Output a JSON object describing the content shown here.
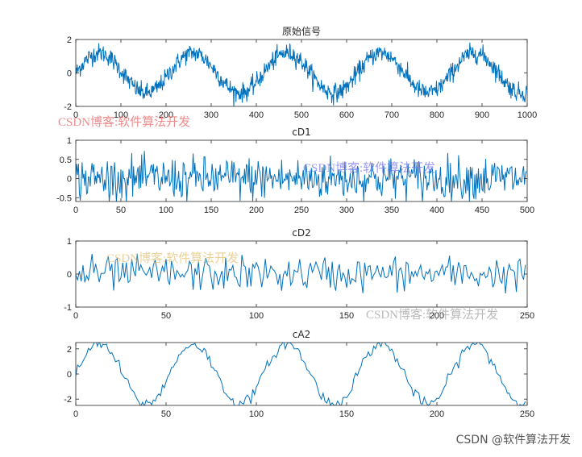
{
  "watermarks": {
    "csdn_1": "CSDN博客:软件算法开发",
    "csdn_2": "CSDN博客:软件算法开发",
    "csdn_3": "CSDN博客:软件算法开发",
    "csdn_4": "CSDN博客:软件算法开发"
  },
  "footer": {
    "text": "CSDN @软件算法开发"
  },
  "colors": {
    "line": "#0072bd",
    "axis": "#262626",
    "background": "#ffffff"
  },
  "chart_data": [
    {
      "type": "line",
      "title": "原始信号",
      "xlim": [
        0,
        1000
      ],
      "ylim": [
        -2,
        2
      ],
      "xticks": [
        0,
        100,
        200,
        300,
        400,
        500,
        600,
        700,
        800,
        900,
        1000
      ],
      "yticks": [
        -2,
        0,
        2
      ],
      "grid": false,
      "series": [
        {
          "n": 1000,
          "shape": "sine",
          "period": 208,
          "phase": 0,
          "amplitude": 1.0,
          "noise_std": 0.28,
          "peaks_x": [
            52,
            260,
            468,
            676,
            884
          ],
          "peak_y": 1.4,
          "trough_y": -1.3
        }
      ]
    },
    {
      "type": "line",
      "title": "cD1",
      "xlim": [
        0,
        500
      ],
      "ylim": [
        -0.6,
        1
      ],
      "xticks": [
        0,
        50,
        100,
        150,
        200,
        250,
        300,
        350,
        400,
        450,
        500
      ],
      "yticks": [
        -0.5,
        0,
        0.5,
        1
      ],
      "grid": false,
      "series": [
        {
          "n": 500,
          "shape": "noise",
          "noise_std": 0.28,
          "clip": [
            -0.6,
            0.72
          ]
        }
      ]
    },
    {
      "type": "line",
      "title": "cD2",
      "xlim": [
        0,
        250
      ],
      "ylim": [
        -1,
        1
      ],
      "xticks": [
        0,
        50,
        100,
        150,
        200,
        250
      ],
      "yticks": [
        -1,
        0,
        1
      ],
      "grid": false,
      "series": [
        {
          "n": 250,
          "shape": "noise",
          "noise_std": 0.26,
          "clip": [
            -0.75,
            0.75
          ]
        }
      ]
    },
    {
      "type": "line",
      "title": "cA2",
      "xlim": [
        0,
        250
      ],
      "ylim": [
        -2.5,
        2.5
      ],
      "xticks": [
        0,
        50,
        100,
        150,
        200,
        250
      ],
      "yticks": [
        -2,
        0,
        2
      ],
      "grid": false,
      "series": [
        {
          "n": 250,
          "shape": "sine",
          "period": 52,
          "phase": 0,
          "amplitude": 2.0,
          "noise_std": 0.22,
          "peaks_x": [
            13,
            65,
            117,
            169,
            221
          ],
          "peak_y": 2.2,
          "trough_y": -2.4
        }
      ]
    }
  ]
}
